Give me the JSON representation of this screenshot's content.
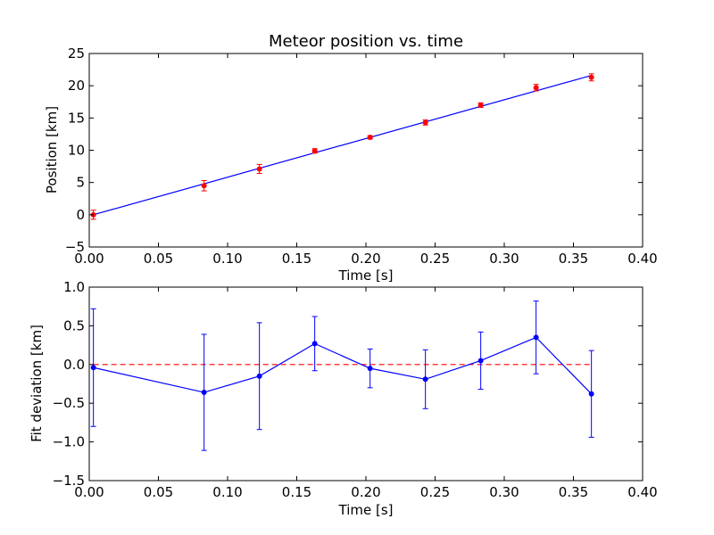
{
  "chart_data": [
    {
      "type": "scatter",
      "title": "Meteor position vs. time",
      "xlabel": "Time [s]",
      "ylabel": "Position [km]",
      "xlim": [
        0.0,
        0.4
      ],
      "ylim": [
        -5,
        25
      ],
      "xticks": [
        "0.00",
        "0.05",
        "0.10",
        "0.15",
        "0.20",
        "0.25",
        "0.30",
        "0.35",
        "0.40"
      ],
      "yticks": [
        "−5",
        "0",
        "5",
        "10",
        "15",
        "20",
        "25"
      ],
      "grid": false,
      "series": [
        {
          "kind": "errorbar-points",
          "color": "#ff0000",
          "x": [
            0.003,
            0.083,
            0.123,
            0.163,
            0.203,
            0.243,
            0.283,
            0.323,
            0.363
          ],
          "y": [
            0.0,
            4.5,
            7.1,
            9.9,
            12.0,
            14.3,
            17.0,
            19.7,
            21.3
          ],
          "yerr": [
            0.7,
            0.8,
            0.7,
            0.35,
            0.25,
            0.4,
            0.35,
            0.5,
            0.55
          ]
        },
        {
          "kind": "fit-line",
          "color": "#0000ff",
          "x": [
            0.003,
            0.363
          ],
          "y": [
            0.0,
            21.6
          ]
        }
      ]
    },
    {
      "type": "line",
      "title": "",
      "xlabel": "Time [s]",
      "ylabel": "Fit deviation [km]",
      "xlim": [
        0.0,
        0.4
      ],
      "ylim": [
        -1.5,
        1.0
      ],
      "xticks": [
        "0.00",
        "0.05",
        "0.10",
        "0.15",
        "0.20",
        "0.25",
        "0.30",
        "0.35",
        "0.40"
      ],
      "yticks": [
        "−1.5",
        "−1.0",
        "−0.5",
        "0.0",
        "0.5",
        "1.0"
      ],
      "grid": false,
      "series": [
        {
          "kind": "errorbar-line",
          "color": "#0000ff",
          "x": [
            0.003,
            0.083,
            0.123,
            0.163,
            0.203,
            0.243,
            0.283,
            0.323,
            0.363
          ],
          "y": [
            -0.04,
            -0.36,
            -0.15,
            0.27,
            -0.05,
            -0.19,
            0.05,
            0.35,
            -0.38
          ],
          "yerr": [
            0.76,
            0.75,
            0.69,
            0.35,
            0.25,
            0.38,
            0.37,
            0.47,
            0.56
          ]
        },
        {
          "kind": "reference-line",
          "color": "#ff0000",
          "style": "dashed",
          "x": [
            0.003,
            0.363
          ],
          "y": [
            0.0,
            0.0
          ]
        }
      ]
    }
  ]
}
